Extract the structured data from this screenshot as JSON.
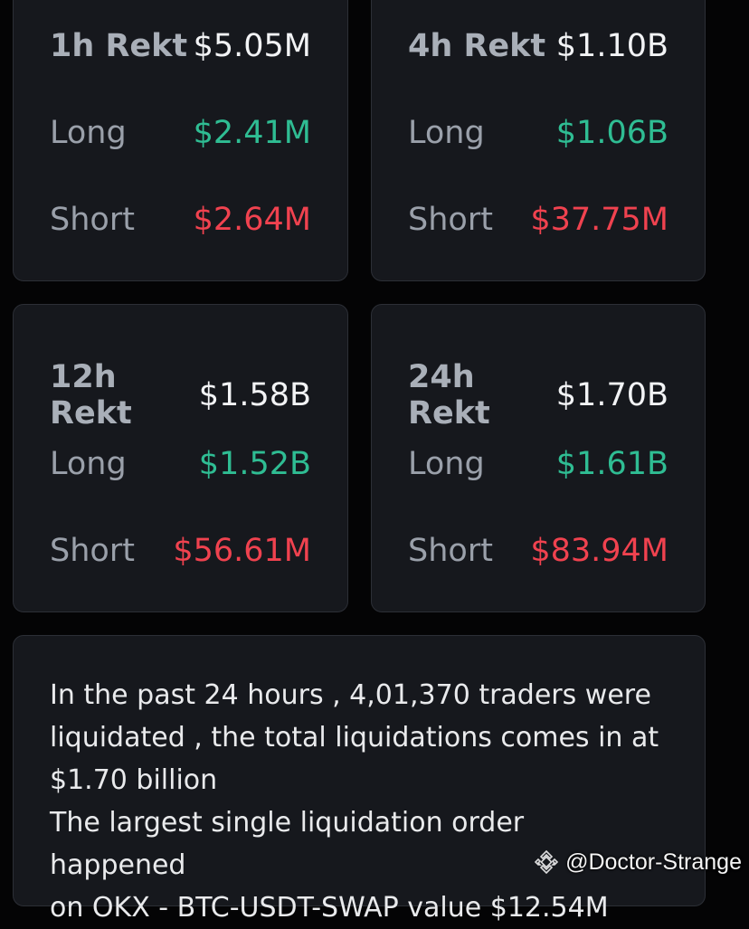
{
  "cards": [
    {
      "title": "1h Rekt",
      "total": "$5.05M",
      "long_label": "Long",
      "long_value": "$2.41M",
      "short_label": "Short",
      "short_value": "$2.64M"
    },
    {
      "title": "4h Rekt",
      "total": "$1.10B",
      "long_label": "Long",
      "long_value": "$1.06B",
      "short_label": "Short",
      "short_value": "$37.75M"
    },
    {
      "title": "12h Rekt",
      "total": "$1.58B",
      "long_label": "Long",
      "long_value": "$1.52B",
      "short_label": "Short",
      "short_value": "$56.61M"
    },
    {
      "title": "24h Rekt",
      "total": "$1.70B",
      "long_label": "Long",
      "long_value": "$1.61B",
      "short_label": "Short",
      "short_value": "$83.94M"
    }
  ],
  "summary": {
    "line1": "In the past 24 hours , 4,01,370 traders were",
    "line2": "liquidated , the total liquidations comes in at",
    "line3": "$1.70 billion",
    "line4": "The largest single liquidation order happened",
    "line5": "on OKX - BTC-USDT-SWAP value $12.54M"
  },
  "watermark": {
    "text": "@Doctor-Strange",
    "icon": "binance-logo-icon"
  },
  "colors": {
    "background": "#040405",
    "card": "#16181d",
    "long": "#2fbd93",
    "short": "#f0424f"
  }
}
